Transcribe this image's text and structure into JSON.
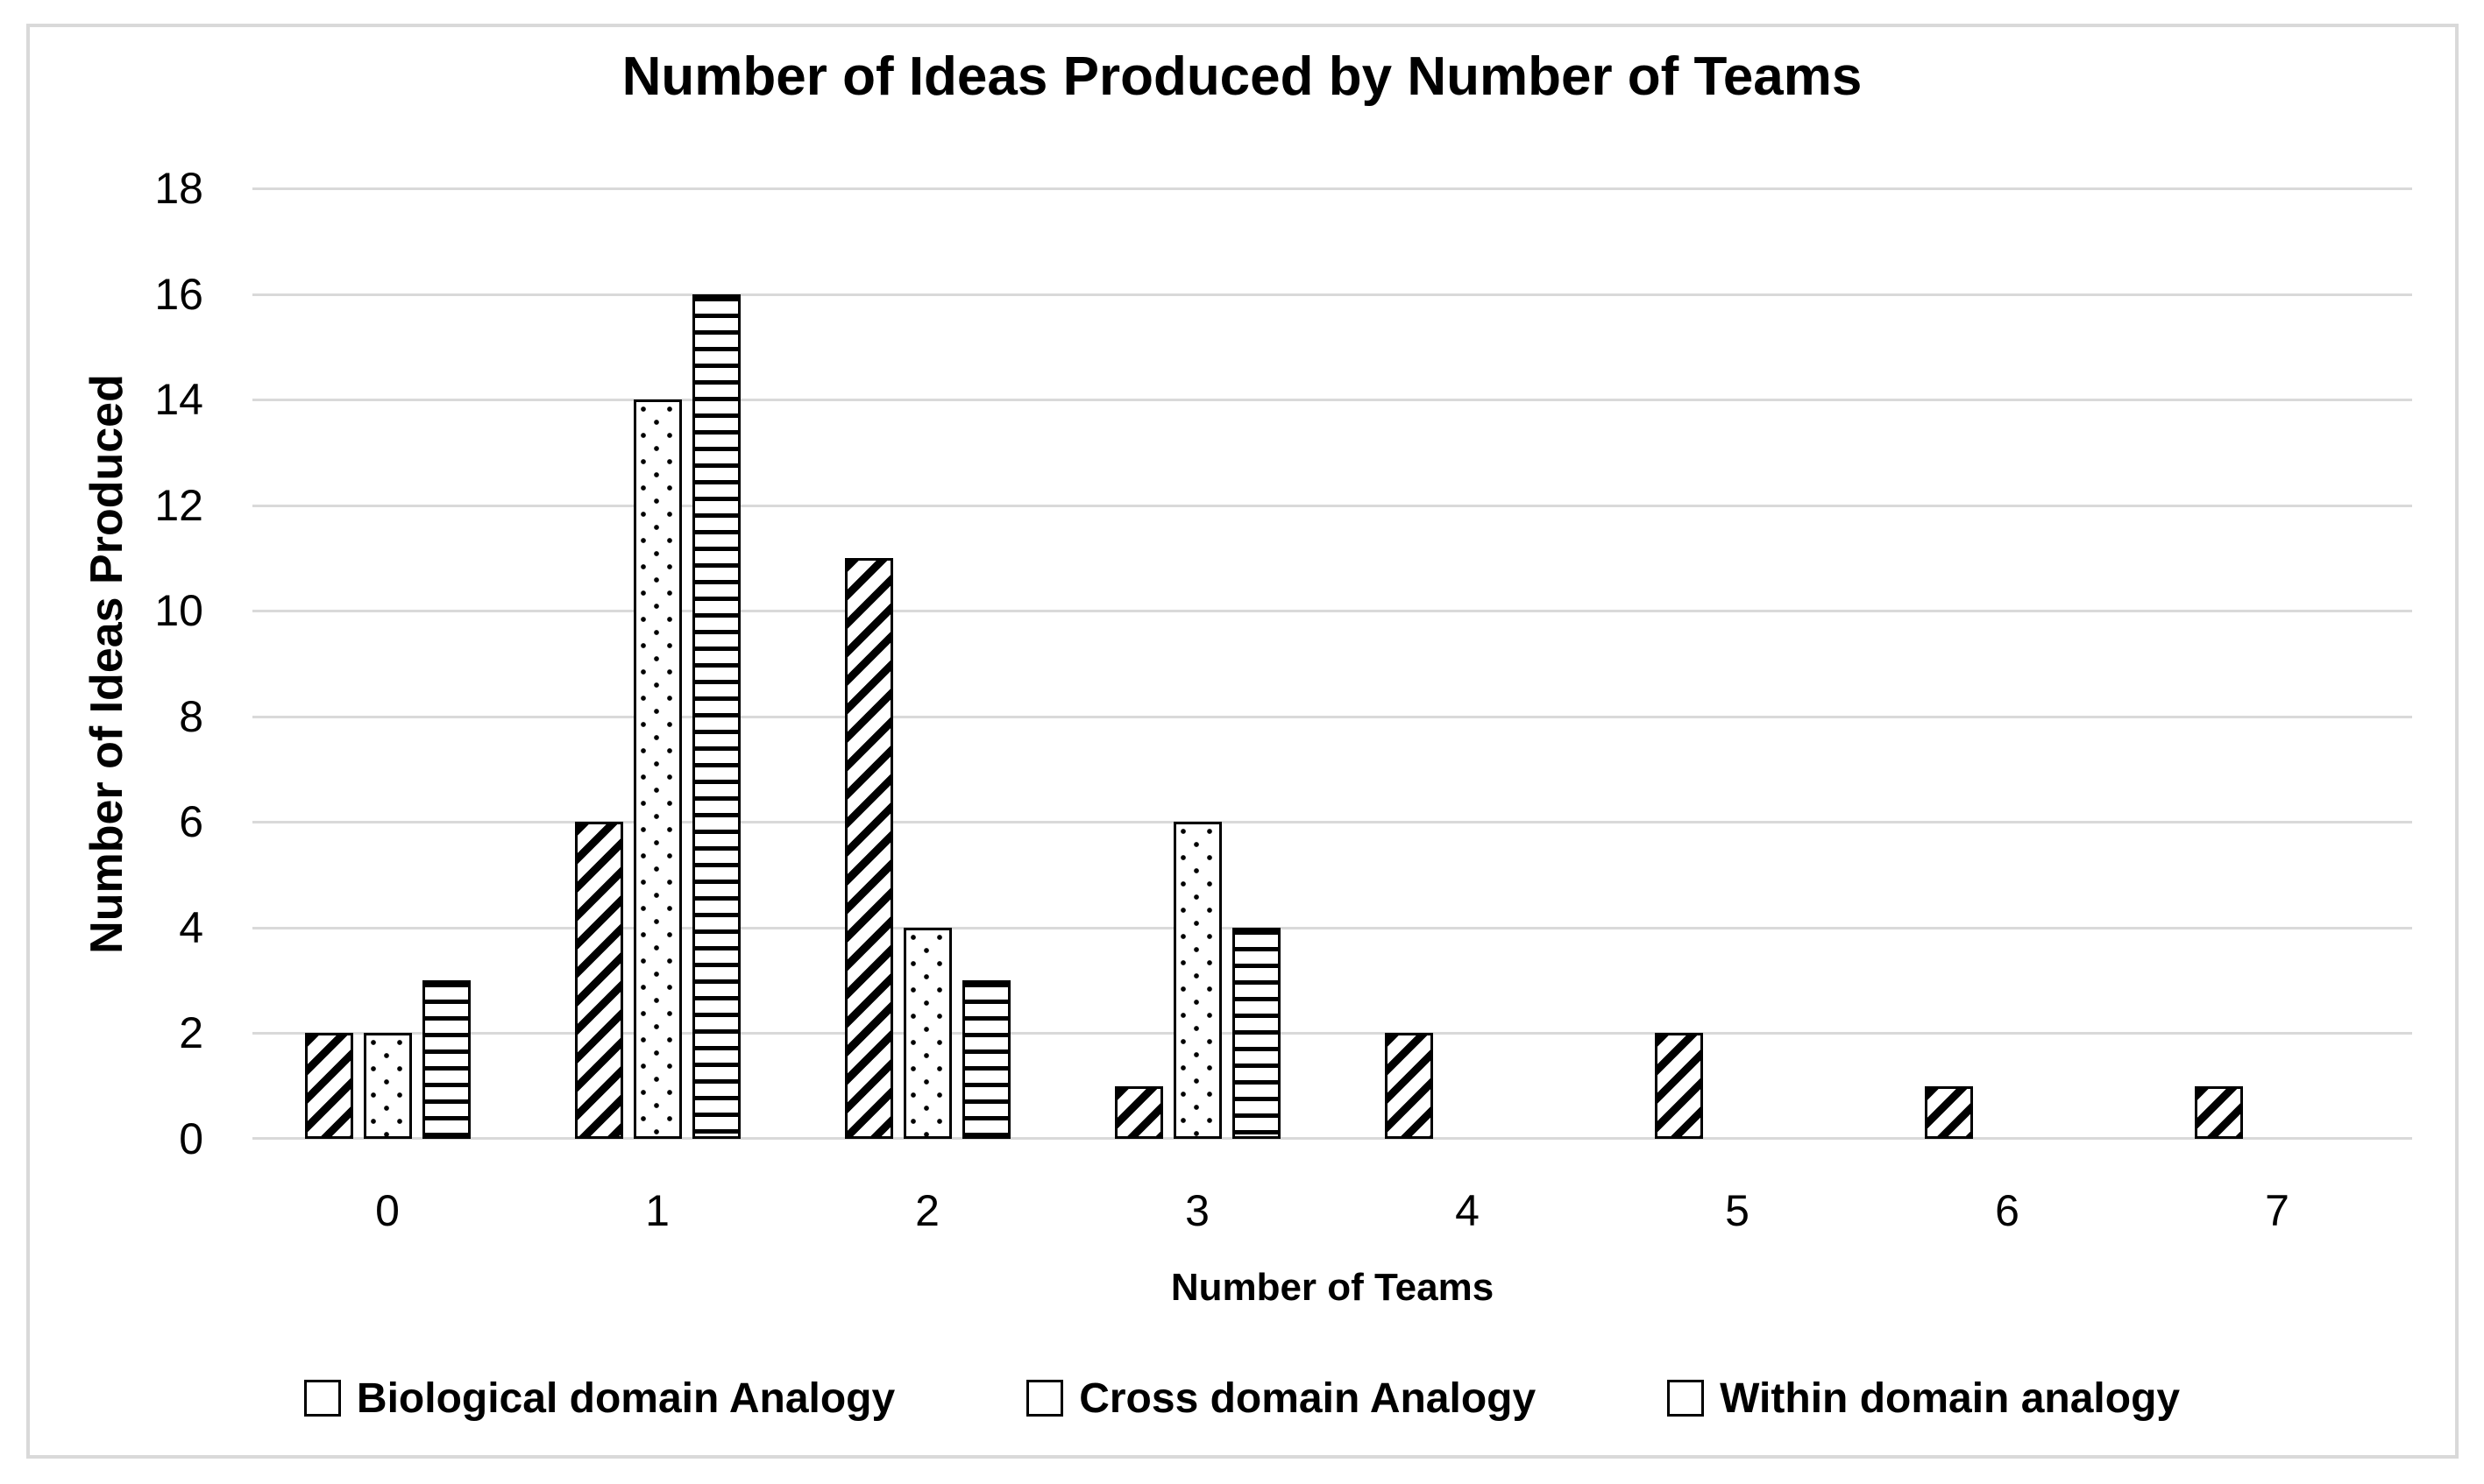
{
  "figure": {
    "title": "Number of Ideas Produced by Number of Teams",
    "x_axis_title": "Number of Teams",
    "y_axis_title": "Number of Ideas Produced"
  },
  "chart_data": {
    "type": "bar",
    "title": "Number of Ideas Produced by Number of Teams",
    "xlabel": "Number of Teams",
    "ylabel": "Number of Ideas Produced",
    "categories": [
      "0",
      "1",
      "2",
      "3",
      "4",
      "5",
      "6",
      "7"
    ],
    "series": [
      {
        "name": "Biological domain Analogy",
        "pattern": "diagonal-stripes",
        "values": [
          2,
          6,
          11,
          1,
          2,
          2,
          1,
          1
        ]
      },
      {
        "name": "Cross domain Analogy",
        "pattern": "dots",
        "values": [
          2,
          14,
          4,
          6,
          0,
          0,
          0,
          0
        ]
      },
      {
        "name": "Within domain analogy",
        "pattern": "horizontal-lines",
        "values": [
          3,
          16,
          3,
          4,
          0,
          0,
          0,
          0
        ]
      }
    ],
    "ylim": [
      0,
      18
    ],
    "ytick_step": 2,
    "grid": "horizontal",
    "legend_position": "bottom",
    "colors": {
      "foreground": "#000000",
      "background": "#ffffff",
      "gridline": "#d9d9d9",
      "frame_border": "#d9d9d9"
    }
  }
}
